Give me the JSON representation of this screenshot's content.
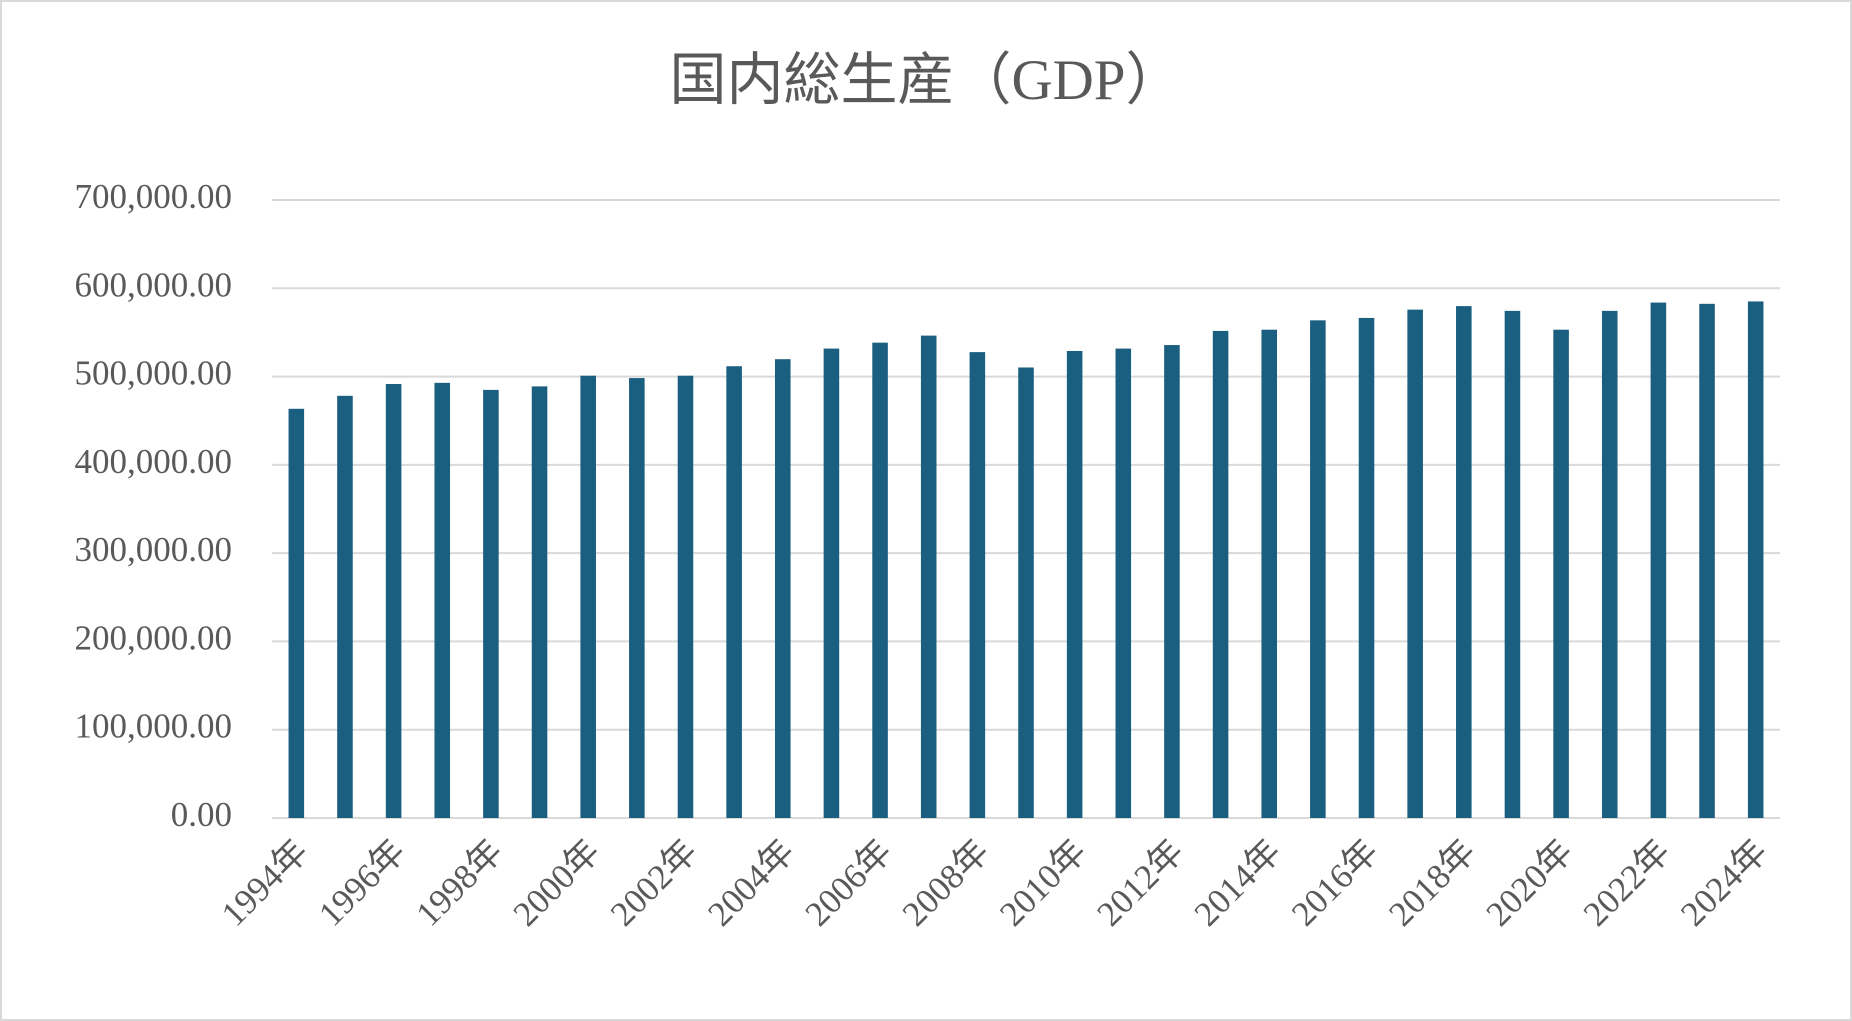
{
  "chart_data": {
    "type": "bar",
    "title": "国内総生産（GDP）",
    "categories": [
      "1994年",
      null,
      "1996年",
      null,
      "1998年",
      null,
      "2000年",
      null,
      "2002年",
      null,
      "2004年",
      null,
      "2006年",
      null,
      "2008年",
      null,
      "2010年",
      null,
      "2012年",
      null,
      "2014年",
      null,
      "2016年",
      null,
      "2018年",
      null,
      "2020年",
      null,
      "2022年",
      null,
      "2024年"
    ],
    "values": [
      463500,
      478200,
      491600,
      492900,
      484900,
      488900,
      501000,
      498300,
      501000,
      511700,
      519700,
      531700,
      538400,
      546400,
      527700,
      510300,
      529000,
      531700,
      535700,
      551700,
      553100,
      563700,
      566400,
      575800,
      579800,
      574400,
      553100,
      574400,
      583800,
      582400,
      585100
    ],
    "color": "#1b5f80",
    "ylim": [
      0,
      700000
    ],
    "yticks": [
      {
        "value": 0,
        "label": "0.00"
      },
      {
        "value": 100000,
        "label": "100,000.00"
      },
      {
        "value": 200000,
        "label": "200,000.00"
      },
      {
        "value": 300000,
        "label": "300,000.00"
      },
      {
        "value": 400000,
        "label": "400,000.00"
      },
      {
        "value": 500000,
        "label": "500,000.00"
      },
      {
        "value": 600000,
        "label": "600,000.00"
      },
      {
        "value": 700000,
        "label": "700,000.00"
      }
    ],
    "grid": true
  }
}
